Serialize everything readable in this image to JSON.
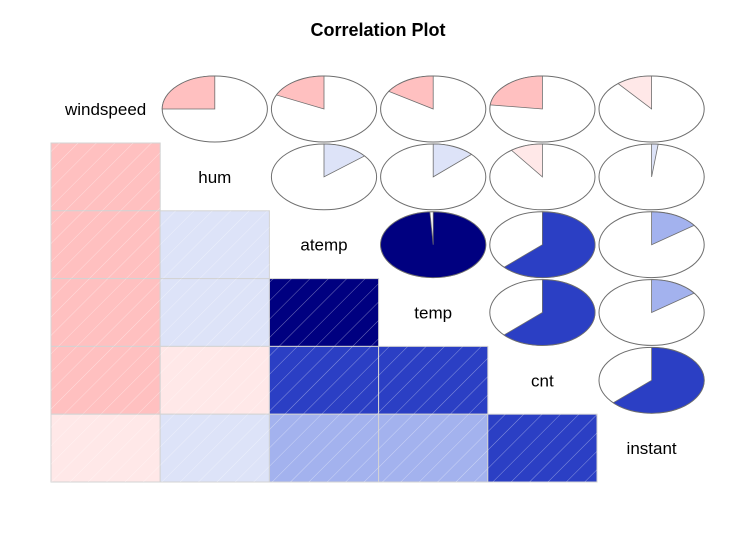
{
  "chart_data": {
    "type": "heatmap",
    "title": "Correlation Plot",
    "variables": [
      "windspeed",
      "hum",
      "atemp",
      "temp",
      "cnt",
      "instant"
    ],
    "lower_panel": "shade",
    "upper_panel": "pie",
    "colors": {
      "positive_strong": "#000080",
      "positive_mid": "#2B3FC4",
      "positive_light": "#A3B2EE",
      "positive_faint": "#DDE3F8",
      "negative_light": "#FFC0C0",
      "negative_faint": "#FFE8E8",
      "border": "#6E6E6E",
      "grid": "#D3D3D3"
    },
    "correlations": [
      {
        "row": "windspeed",
        "col": "hum",
        "r": -0.25
      },
      {
        "row": "windspeed",
        "col": "atemp",
        "r": -0.18
      },
      {
        "row": "windspeed",
        "col": "temp",
        "r": -0.16
      },
      {
        "row": "windspeed",
        "col": "cnt",
        "r": -0.23
      },
      {
        "row": "windspeed",
        "col": "instant",
        "r": -0.11
      },
      {
        "row": "hum",
        "col": "atemp",
        "r": 0.14
      },
      {
        "row": "hum",
        "col": "temp",
        "r": 0.13
      },
      {
        "row": "hum",
        "col": "cnt",
        "r": -0.1
      },
      {
        "row": "hum",
        "col": "instant",
        "r": 0.02
      },
      {
        "row": "atemp",
        "col": "temp",
        "r": 0.99
      },
      {
        "row": "atemp",
        "col": "cnt",
        "r": 0.63
      },
      {
        "row": "atemp",
        "col": "instant",
        "r": 0.15
      },
      {
        "row": "temp",
        "col": "cnt",
        "r": 0.63
      },
      {
        "row": "temp",
        "col": "instant",
        "r": 0.15
      },
      {
        "row": "cnt",
        "col": "instant",
        "r": 0.63
      }
    ]
  }
}
